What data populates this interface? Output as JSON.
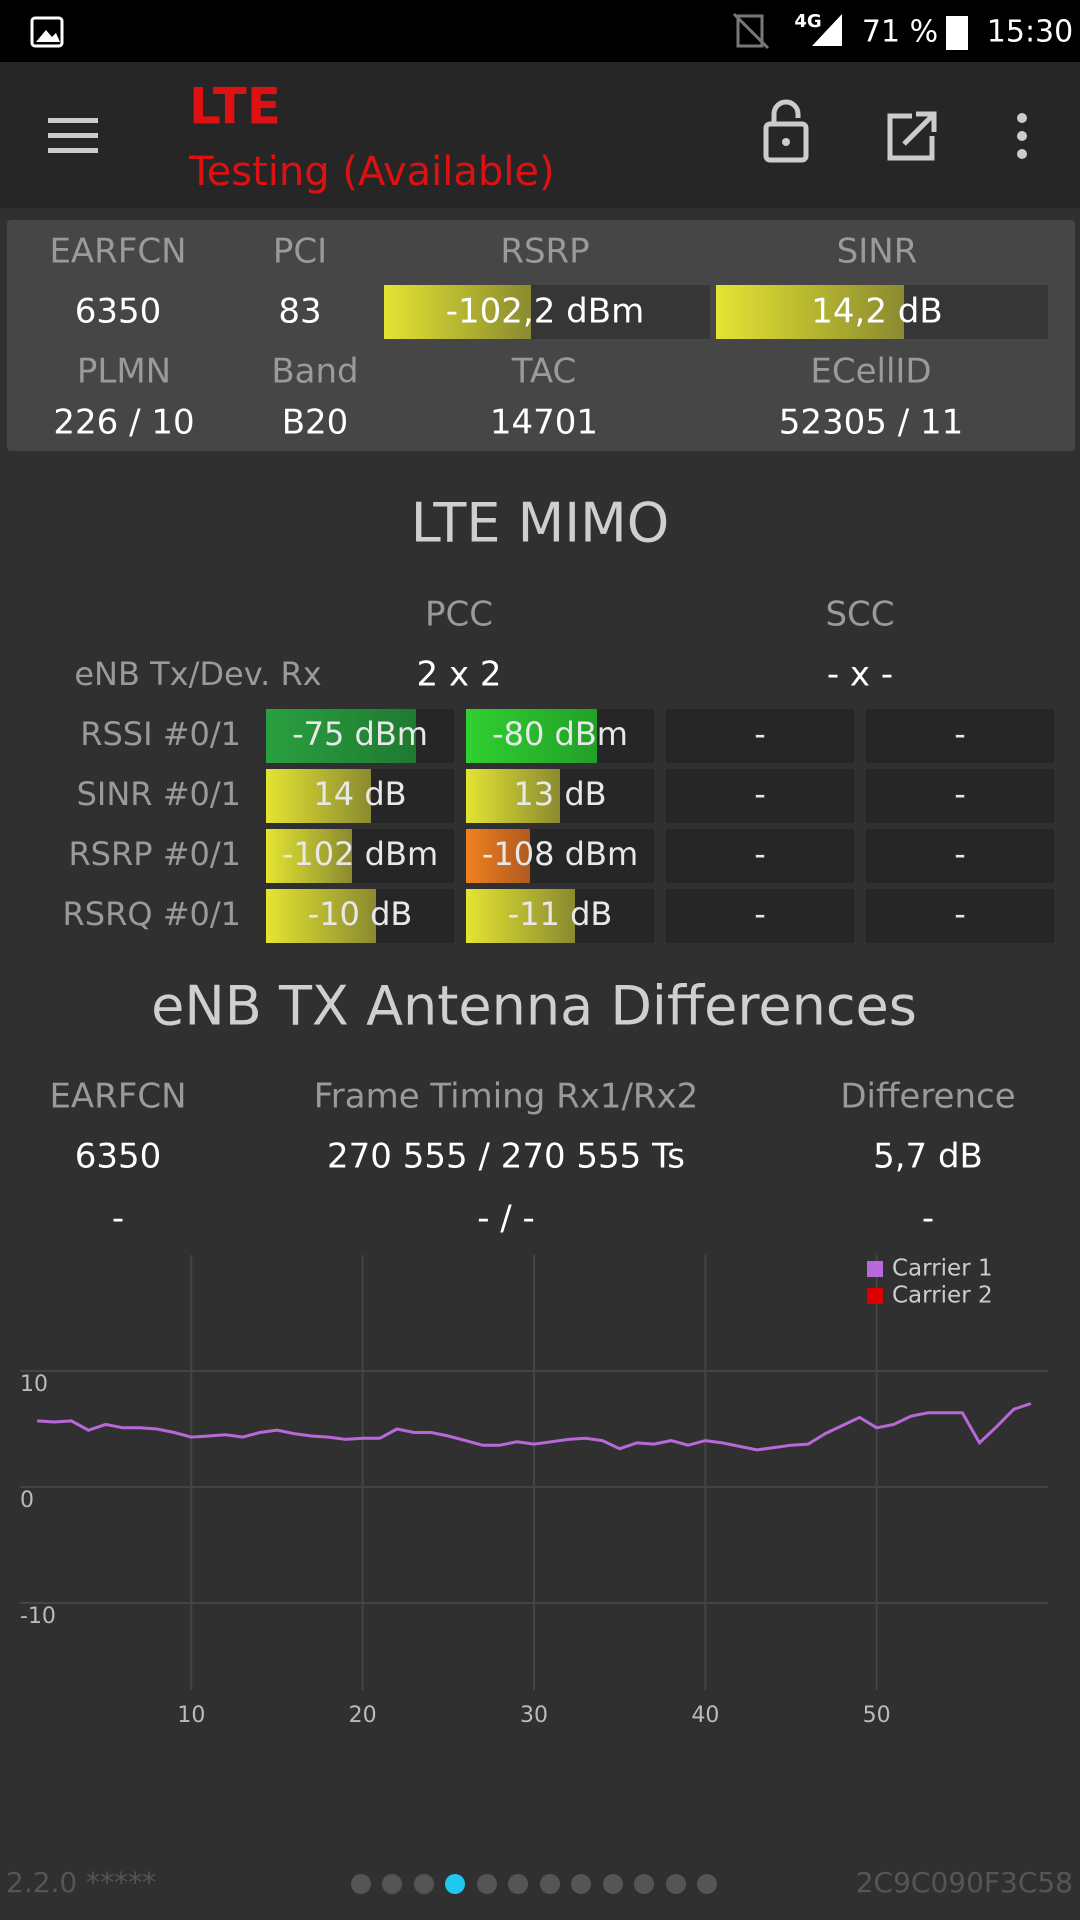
{
  "status_bar": {
    "network": "4G",
    "battery": "71 %",
    "time": "15:30"
  },
  "app_bar": {
    "title": "LTE",
    "subtitle": "Testing (Available)"
  },
  "cell_info": {
    "headers": [
      "EARFCN",
      "PCI",
      "RSRP",
      "SINR"
    ],
    "values": [
      "6350",
      "83",
      "-102,2 dBm",
      "14,2 dB"
    ],
    "headers2": [
      "PLMN",
      "Band",
      "TAC",
      "ECellID"
    ],
    "values2": [
      "226 / 10",
      "B20",
      "14701",
      "52305 / 11"
    ]
  },
  "mimo": {
    "title": "LTE MIMO",
    "columns": [
      "PCC",
      "SCC"
    ],
    "config": {
      "label": "eNB Tx/Dev. Rx",
      "pcc": "2 x 2",
      "scc": "- x -"
    },
    "rows": [
      {
        "label": "RSSI #0/1",
        "cells": [
          "-75 dBm",
          "-80 dBm",
          "-",
          "-"
        ]
      },
      {
        "label": "SINR #0/1",
        "cells": [
          "14 dB",
          "13 dB",
          "-",
          "-"
        ]
      },
      {
        "label": "RSRP #0/1",
        "cells": [
          "-102 dBm",
          "-108 dBm",
          "-",
          "-"
        ]
      },
      {
        "label": "RSRQ #0/1",
        "cells": [
          "-10 dB",
          "-11 dB",
          "-",
          "-"
        ]
      }
    ]
  },
  "antenna": {
    "title": "eNB TX Antenna Differences",
    "headers": [
      "EARFCN",
      "Frame Timing Rx1/Rx2",
      "Difference"
    ],
    "values": [
      "6350",
      "270 555 / 270 555 Ts",
      "5,7 dB"
    ],
    "values2": [
      "-",
      "- / -",
      "-"
    ]
  },
  "chart": {
    "type": "line",
    "x": [
      1,
      2,
      3,
      4,
      5,
      6,
      7,
      8,
      9,
      10,
      11,
      12,
      13,
      14,
      15,
      16,
      17,
      18,
      19,
      20,
      21,
      22,
      23,
      24,
      25,
      26,
      27,
      28,
      29,
      30,
      31,
      32,
      33,
      34,
      35,
      36,
      37,
      38,
      39,
      40,
      41,
      42,
      43,
      44,
      45,
      46,
      47,
      48,
      49,
      50,
      51,
      52,
      53,
      54,
      55,
      56,
      57,
      58,
      59
    ],
    "series": [
      {
        "name": "Carrier 1",
        "color": "#b868d8",
        "values": [
          5.7,
          5.6,
          5.7,
          4.9,
          5.4,
          5.1,
          5.1,
          5.0,
          4.7,
          4.3,
          4.4,
          4.5,
          4.3,
          4.7,
          4.9,
          4.6,
          4.4,
          4.3,
          4.1,
          4.2,
          4.2,
          5.0,
          4.7,
          4.7,
          4.4,
          4.0,
          3.6,
          3.6,
          3.9,
          3.7,
          3.9,
          4.1,
          4.2,
          4.0,
          3.3,
          3.8,
          3.7,
          4.0,
          3.6,
          4.0,
          3.8,
          3.5,
          3.2,
          3.4,
          3.6,
          3.7,
          4.6,
          5.3,
          6.0,
          5.1,
          5.4,
          6.1,
          6.4,
          6.4,
          6.4,
          3.8,
          5.2,
          6.7,
          7.2
        ]
      },
      {
        "name": "Carrier 2",
        "color": "#dd0000",
        "values": [
          null,
          null,
          null,
          null,
          null,
          null,
          null,
          null,
          null,
          null,
          null,
          null,
          null,
          null,
          null,
          null,
          null,
          null,
          null,
          null,
          null,
          null,
          null,
          null,
          null,
          null,
          null,
          null,
          null,
          null,
          null,
          null,
          null,
          null,
          null,
          null,
          null,
          null,
          null,
          null,
          null,
          null,
          null,
          null,
          null,
          null,
          null,
          null,
          null,
          null,
          null,
          null,
          null,
          null,
          null,
          null,
          null,
          null,
          null
        ]
      }
    ],
    "xlim": [
      0,
      60
    ],
    "ylim": [
      -17.5,
      20
    ],
    "xticks": [
      10,
      20,
      30,
      40,
      50
    ],
    "yticks": [
      -10,
      0,
      10
    ],
    "grid": true
  },
  "footer": {
    "version": "2.2.0 *****",
    "device_id": "2C9C090F3C58"
  }
}
